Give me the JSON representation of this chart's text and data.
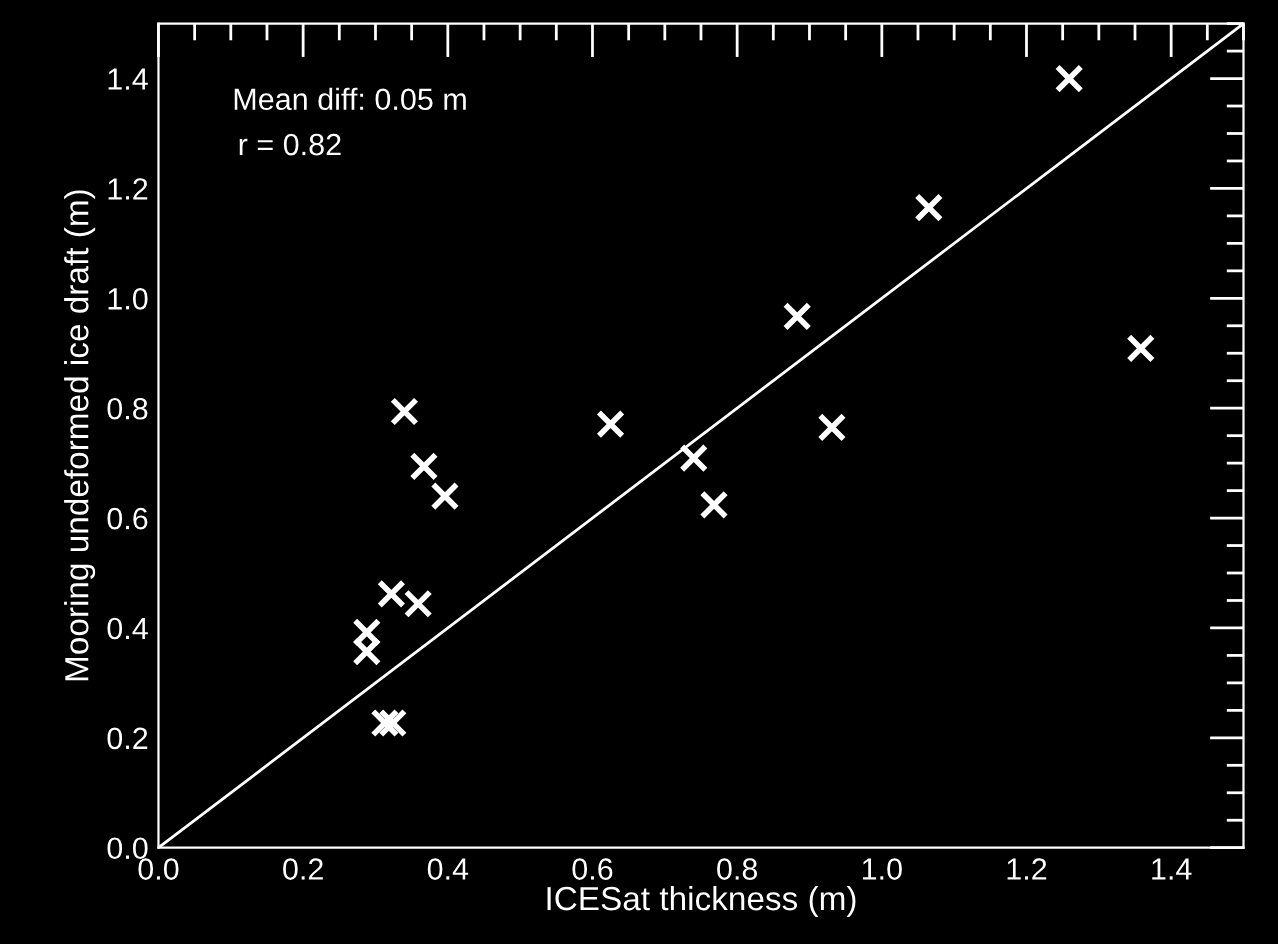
{
  "chart_data": {
    "type": "scatter",
    "xlabel": "ICESat thickness (m)",
    "ylabel": "Mooring undeformed ice draft (m)",
    "annotations": [
      "Mean diff: 0.05 m",
      "r = 0.82"
    ],
    "xlim": [
      0,
      1.5
    ],
    "ylim": [
      0,
      1.5
    ],
    "xticks": [
      {
        "value": 0,
        "label": "0.0"
      },
      0.2,
      0.4,
      0.6,
      0.8,
      {
        "value": 1,
        "label": "1.0"
      },
      1.2,
      1.4
    ],
    "yticks": [
      {
        "value": 0,
        "label": "0.0"
      },
      0.2,
      0.4,
      0.6,
      0.8,
      {
        "value": 1,
        "label": "1.0"
      },
      1.2,
      1.4
    ],
    "marker": "cross",
    "grid": false,
    "legend": false,
    "series": [
      {
        "color": "#ffffff",
        "x": [
          1.259,
          1.065,
          1.358,
          0.883,
          0.931,
          0.625,
          0.74,
          0.768,
          0.34,
          0.367,
          0.396,
          0.322,
          0.359,
          0.288,
          0.288,
          0.313,
          0.324
        ],
        "values": [
          1.4,
          1.165,
          0.909,
          0.967,
          0.765,
          0.771,
          0.709,
          0.624,
          0.794,
          0.694,
          0.64,
          0.462,
          0.444,
          0.392,
          0.357,
          0.227,
          0.227
        ]
      },
      {
        "type": "line",
        "marker": "none",
        "color": "#ffffff",
        "x": [
          0,
          1.5
        ],
        "values": [
          0,
          1.5
        ]
      }
    ]
  }
}
